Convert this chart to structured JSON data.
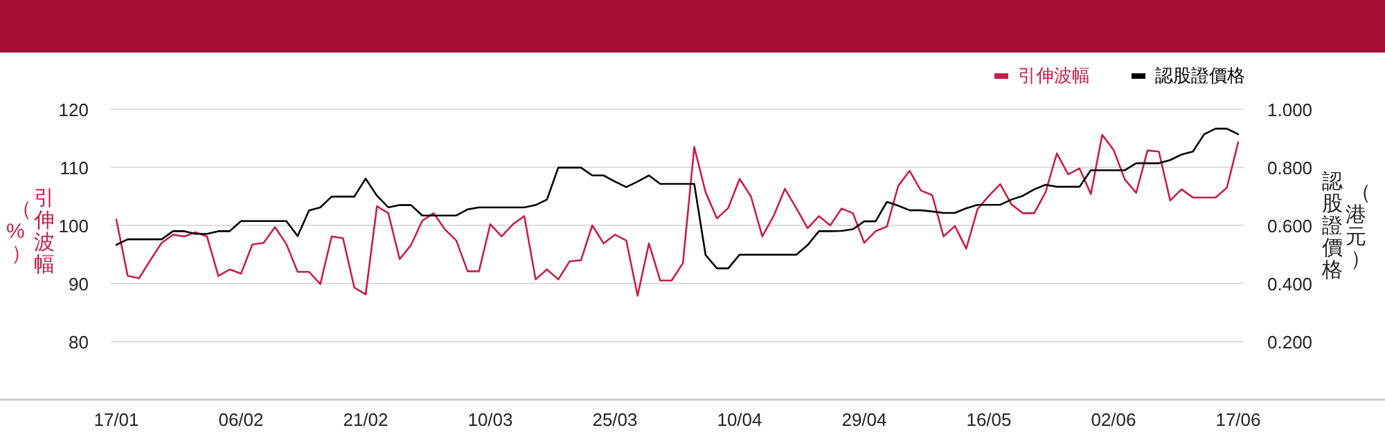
{
  "chart_data": {
    "type": "line",
    "categories": [
      "17/01",
      null,
      null,
      null,
      null,
      null,
      null,
      null,
      null,
      null,
      null,
      "06/02",
      null,
      null,
      null,
      null,
      null,
      null,
      null,
      null,
      null,
      null,
      "21/02",
      null,
      null,
      null,
      null,
      null,
      null,
      null,
      null,
      null,
      null,
      "10/03",
      null,
      null,
      null,
      null,
      null,
      null,
      null,
      null,
      null,
      null,
      "25/03",
      null,
      null,
      null,
      null,
      null,
      null,
      null,
      null,
      null,
      null,
      "10/04",
      null,
      null,
      null,
      null,
      null,
      null,
      null,
      null,
      null,
      null,
      "29/04",
      null,
      null,
      null,
      null,
      null,
      null,
      null,
      null,
      null,
      null,
      "16/05",
      null,
      null,
      null,
      null,
      null,
      null,
      null,
      null,
      null,
      null,
      "02/06",
      null,
      null,
      null,
      null,
      null,
      null,
      null,
      null,
      null,
      null,
      "17/06"
    ],
    "ylabel": "引伸波幅（%）",
    "y2label": "認股證價格（港元）",
    "ylim": [
      70,
      120
    ],
    "yticks": [
      80,
      90,
      100,
      110,
      120
    ],
    "y2lim": [
      0,
      1
    ],
    "y2ticks": [
      {
        "value": 0.2,
        "label": "0.200"
      },
      {
        "value": 0.4,
        "label": "0.400"
      },
      {
        "value": 0.6,
        "label": "0.600"
      },
      {
        "value": 0.8,
        "label": "0.800"
      },
      {
        "value": 1,
        "label": "1.000"
      }
    ],
    "grid": "y",
    "legend": "top right",
    "marker": "none",
    "line_style": "solid",
    "series": [
      {
        "name": "引伸波幅",
        "color": "#c41e4a",
        "values": [
          101.0,
          91.3,
          90.9,
          94.0,
          97.0,
          98.4,
          98.1,
          98.8,
          98.1,
          91.3,
          92.4,
          91.7,
          96.7,
          97.0,
          99.7,
          96.8,
          92.0,
          92.0,
          89.9,
          98.1,
          97.8,
          89.3,
          88.1,
          103.3,
          102.1,
          94.2,
          96.6,
          100.8,
          102.1,
          99.3,
          97.4,
          92.1,
          92.1,
          100.2,
          98.1,
          100.2,
          101.6,
          90.7,
          92.4,
          90.7,
          93.8,
          94.0,
          100.0,
          96.9,
          98.4,
          97.4,
          87.9,
          96.9,
          90.5,
          90.5,
          93.5,
          113.5,
          105.7,
          101.2,
          103.0,
          108.0,
          105.0,
          98.1,
          101.6,
          106.3,
          103.0,
          99.5,
          101.6,
          100.0,
          102.9,
          102.1,
          97.0,
          99.0,
          99.8,
          106.8,
          109.4,
          106.0,
          105.2,
          98.1,
          99.9,
          96.0,
          102.8,
          105.1,
          107.1,
          103.6,
          102.1,
          102.1,
          105.7,
          112.4,
          108.8,
          109.8,
          105.4,
          115.6,
          113.0,
          107.9,
          105.6,
          112.9,
          112.7,
          104.3,
          106.2,
          104.8,
          104.8,
          104.8,
          106.5,
          114.3
        ]
      },
      {
        "name": "認股證價格",
        "color": "#000000",
        "axis": "y2",
        "values": [
          0.533,
          0.552,
          0.552,
          0.552,
          0.552,
          0.58,
          0.58,
          0.571,
          0.571,
          0.58,
          0.58,
          0.615,
          0.615,
          0.615,
          0.615,
          0.615,
          0.563,
          0.651,
          0.662,
          0.699,
          0.699,
          0.699,
          0.761,
          0.702,
          0.662,
          0.67,
          0.67,
          0.634,
          0.634,
          0.634,
          0.634,
          0.655,
          0.662,
          0.662,
          0.662,
          0.662,
          0.662,
          0.67,
          0.689,
          0.799,
          0.799,
          0.799,
          0.772,
          0.772,
          0.751,
          0.732,
          0.751,
          0.772,
          0.743,
          0.743,
          0.743,
          0.743,
          0.498,
          0.452,
          0.452,
          0.499,
          0.499,
          0.499,
          0.499,
          0.499,
          0.499,
          0.532,
          0.58,
          0.58,
          0.581,
          0.587,
          0.614,
          0.614,
          0.681,
          0.668,
          0.652,
          0.652,
          0.648,
          0.643,
          0.643,
          0.659,
          0.671,
          0.671,
          0.671,
          0.689,
          0.702,
          0.724,
          0.74,
          0.733,
          0.733,
          0.733,
          0.79,
          0.79,
          0.79,
          0.79,
          0.814,
          0.814,
          0.814,
          0.825,
          0.844,
          0.854,
          0.914,
          0.933,
          0.933,
          0.914
        ]
      }
    ]
  }
}
